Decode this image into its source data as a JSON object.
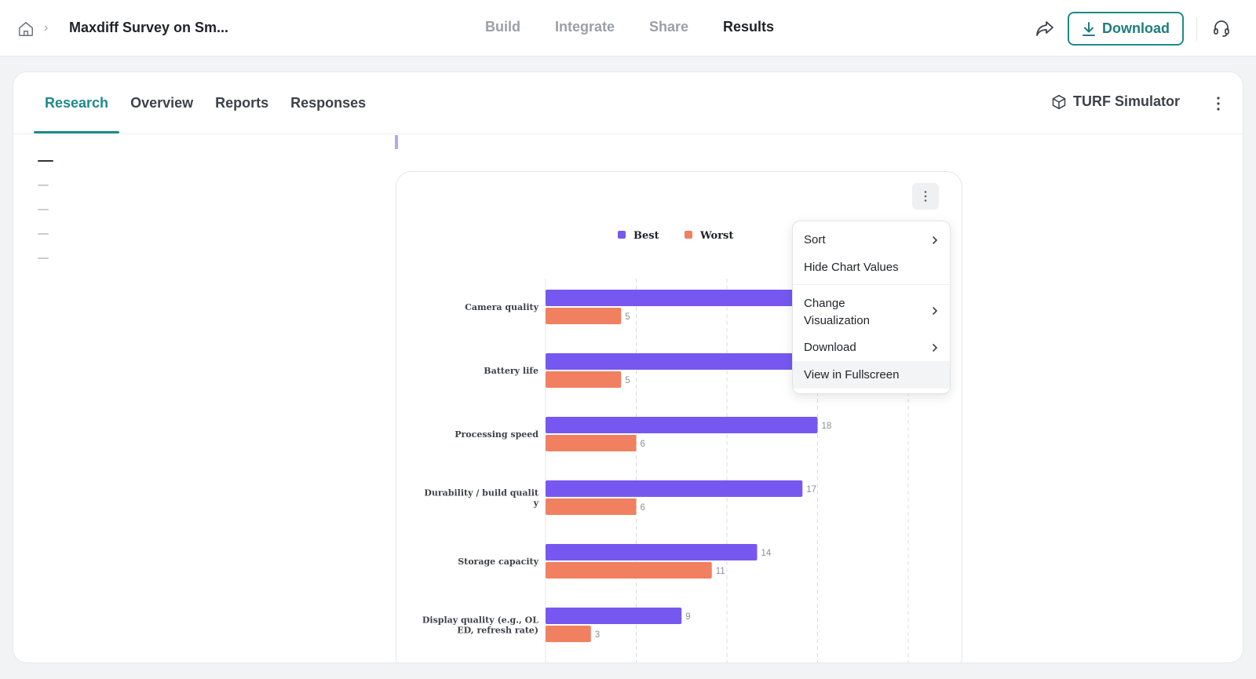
{
  "header": {
    "breadcrumb_sep": "›",
    "doc_title": "Maxdiff Survey on Sm...",
    "tabs": [
      "Build",
      "Integrate",
      "Share",
      "Results"
    ],
    "active_tab": "Results",
    "download_label": "Download"
  },
  "subnav": {
    "tabs": [
      "Research",
      "Overview",
      "Reports",
      "Responses"
    ],
    "active_tab": "Research",
    "turf_label": "TURF Simulator"
  },
  "toc": {
    "count": 5,
    "active_index": 0
  },
  "menu": {
    "sort": "Sort",
    "hide_values": "Hide Chart Values",
    "change_vis_line1": "Change",
    "change_vis_line2": "Visualization",
    "download": "Download",
    "fullscreen": "View in Fullscreen"
  },
  "colors": {
    "accent": "#1f8a8a",
    "best": "#7658f0",
    "worst": "#f08060"
  },
  "chart_data": {
    "type": "bar",
    "orientation": "horizontal",
    "legend_placement": "top-center",
    "grid": true,
    "xlim": [
      0,
      24
    ],
    "categories": [
      [
        "Camera quality"
      ],
      [
        "Battery life"
      ],
      [
        "Processing speed"
      ],
      [
        "Durability / build qualit",
        "y"
      ],
      [
        "Storage capacity"
      ],
      [
        "Display quality (e.g., OL",
        "ED, refresh rate)"
      ]
    ],
    "series": [
      {
        "name": "Best",
        "values": [
          20,
          20,
          18,
          17,
          14,
          9
        ]
      },
      {
        "name": "Worst",
        "values": [
          5,
          5,
          6,
          6,
          11,
          3
        ]
      }
    ]
  }
}
